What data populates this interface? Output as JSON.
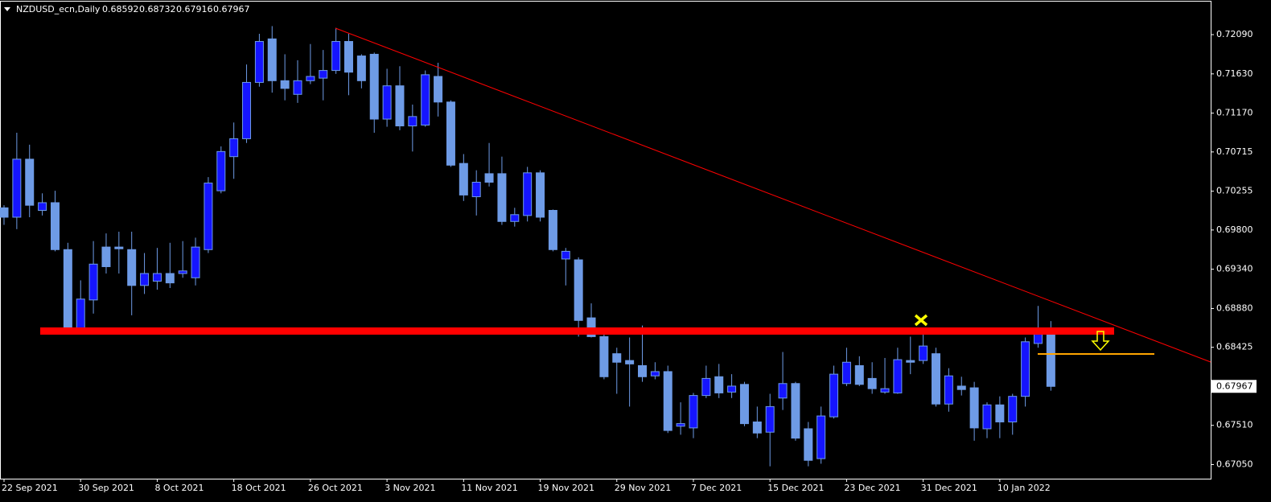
{
  "chart_data": {
    "type": "candlestick",
    "title": "NZDUSD_ecn,Daily",
    "categories": [
      "22 Sep 2021",
      null,
      null,
      null,
      null,
      null,
      "30 Sep 2021",
      null,
      null,
      null,
      null,
      null,
      "8 Oct 2021",
      null,
      null,
      null,
      null,
      null,
      "18 Oct 2021",
      null,
      null,
      null,
      null,
      null,
      "26 Oct 2021",
      null,
      null,
      null,
      null,
      null,
      "3 Nov 2021",
      null,
      null,
      null,
      null,
      null,
      "11 Nov 2021",
      null,
      null,
      null,
      null,
      null,
      "19 Nov 2021",
      null,
      null,
      null,
      null,
      null,
      "29 Nov 2021",
      null,
      null,
      null,
      null,
      null,
      "7 Dec 2021",
      null,
      null,
      null,
      null,
      null,
      "15 Dec 2021",
      null,
      null,
      null,
      null,
      null,
      "23 Dec 2021",
      null,
      null,
      null,
      null,
      null,
      "31 Dec 2021",
      null,
      null,
      null,
      null,
      null,
      "10 Jan 2022",
      null,
      null,
      null,
      null
    ],
    "open": [
      0.7006,
      0.6995,
      0.7063,
      0.7003,
      0.7012,
      0.6957,
      0.6865,
      0.6898,
      0.696,
      0.696,
      0.6957,
      0.6915,
      0.692,
      0.6929,
      0.6929,
      0.6924,
      0.6957,
      0.7026,
      0.7066,
      0.7087,
      0.7153,
      0.7204,
      0.7155,
      0.7139,
      0.7155,
      0.7158,
      0.7167,
      0.7201,
      0.7184,
      0.7186,
      0.711,
      0.7149,
      0.7102,
      0.7103,
      0.716,
      0.713,
      0.7058,
      0.7019,
      0.7046,
      0.7046,
      0.699,
      0.6997,
      0.7047,
      0.7003,
      0.6946,
      0.6945,
      0.6877,
      0.6855,
      0.6835,
      0.6827,
      0.6821,
      0.6809,
      0.6814,
      0.675,
      0.6748,
      0.6786,
      0.6808,
      0.679,
      0.6799,
      0.6755,
      0.6743,
      0.6783,
      0.68,
      0.6747,
      0.6712,
      0.6761,
      0.68,
      0.6821,
      0.6806,
      0.679,
      0.6789,
      0.6827,
      0.6827,
      0.6835,
      0.6776,
      0.6797,
      0.6795,
      0.6747,
      0.6775,
      0.6755,
      0.6785,
      0.6847,
      0.68592
    ],
    "high": [
      0.7009,
      0.7094,
      0.708,
      0.7023,
      0.7026,
      0.6965,
      0.6921,
      0.6967,
      0.6976,
      0.6978,
      0.6978,
      0.6953,
      0.6959,
      0.6965,
      0.6967,
      0.6971,
      0.7042,
      0.7078,
      0.7106,
      0.7174,
      0.721,
      0.7219,
      0.7186,
      0.7179,
      0.7198,
      0.7191,
      0.7217,
      0.721,
      0.7186,
      0.7188,
      0.7169,
      0.7172,
      0.7127,
      0.7167,
      0.7176,
      0.7132,
      0.7069,
      0.705,
      0.7082,
      0.7066,
      0.7006,
      0.7054,
      0.705,
      0.7004,
      0.6959,
      0.6948,
      0.6894,
      0.6861,
      0.6842,
      0.6854,
      0.6868,
      0.6825,
      0.6821,
      0.6778,
      0.6789,
      0.6821,
      0.6823,
      0.6811,
      0.6802,
      0.6773,
      0.6788,
      0.6837,
      0.6802,
      0.6755,
      0.6773,
      0.6821,
      0.6842,
      0.6832,
      0.6825,
      0.683,
      0.6842,
      0.6855,
      0.686,
      0.6842,
      0.6818,
      0.6808,
      0.6802,
      0.6778,
      0.6785,
      0.6788,
      0.6854,
      0.6891,
      0.68732
    ],
    "low": [
      0.6986,
      0.6981,
      0.6995,
      0.6997,
      0.6955,
      0.6861,
      0.6863,
      0.6882,
      0.6929,
      0.6929,
      0.688,
      0.6905,
      0.691,
      0.6912,
      0.6924,
      0.6915,
      0.6953,
      0.7023,
      0.704,
      0.7082,
      0.7148,
      0.7141,
      0.7132,
      0.7129,
      0.7151,
      0.7132,
      0.7163,
      0.7138,
      0.7146,
      0.7094,
      0.7101,
      0.7097,
      0.7072,
      0.7101,
      0.7113,
      0.7054,
      0.7014,
      0.6997,
      0.7031,
      0.6986,
      0.6984,
      0.699,
      0.699,
      0.6955,
      0.6915,
      0.6855,
      0.6854,
      0.6805,
      0.6788,
      0.6773,
      0.6802,
      0.6805,
      0.6742,
      0.674,
      0.6736,
      0.6783,
      0.6783,
      0.6783,
      0.675,
      0.6736,
      0.6703,
      0.6769,
      0.6733,
      0.6703,
      0.6706,
      0.6759,
      0.6797,
      0.6797,
      0.6788,
      0.6788,
      0.6788,
      0.6811,
      0.6823,
      0.6773,
      0.6767,
      0.6786,
      0.6733,
      0.6736,
      0.6736,
      0.674,
      0.6773,
      0.6842,
      0.67916
    ],
    "close": [
      0.6995,
      0.7063,
      0.7009,
      0.7012,
      0.6957,
      0.6865,
      0.6899,
      0.694,
      0.6937,
      0.6958,
      0.6915,
      0.6929,
      0.6929,
      0.6918,
      0.6932,
      0.696,
      0.7035,
      0.7072,
      0.7087,
      0.7153,
      0.7201,
      0.7155,
      0.7146,
      0.7155,
      0.716,
      0.7167,
      0.7201,
      0.7165,
      0.7155,
      0.711,
      0.7149,
      0.7102,
      0.7113,
      0.7162,
      0.713,
      0.7056,
      0.7021,
      0.7036,
      0.7036,
      0.699,
      0.6998,
      0.7047,
      0.6995,
      0.6957,
      0.6955,
      0.6874,
      0.6855,
      0.6808,
      0.6825,
      0.6823,
      0.6808,
      0.6814,
      0.6745,
      0.6753,
      0.6786,
      0.6806,
      0.6789,
      0.6797,
      0.6753,
      0.6742,
      0.6773,
      0.68,
      0.6736,
      0.671,
      0.6762,
      0.6811,
      0.6825,
      0.6799,
      0.6794,
      0.6794,
      0.6828,
      0.6825,
      0.6844,
      0.6776,
      0.6809,
      0.6793,
      0.6748,
      0.6775,
      0.6755,
      0.6785,
      0.6849,
      0.6861,
      0.67967
    ],
    "up_color": "#1515ff",
    "down_color": "#6e9be6",
    "ylim": [
      0.66885,
      0.72496
    ],
    "yticks": [
      {
        "value": 0.7209,
        "label": "0.72090"
      },
      {
        "value": 0.7163,
        "label": "0.71630"
      },
      {
        "value": 0.7117,
        "label": "0.71170"
      },
      0.70715,
      0.70255,
      {
        "value": 0.698,
        "label": "0.69800"
      },
      {
        "value": 0.6934,
        "label": "0.69340"
      },
      {
        "value": 0.6888,
        "label": "0.68880"
      },
      0.68425,
      {
        "value": 0.6751,
        "label": "0.67510"
      },
      {
        "value": 0.6705,
        "label": "0.67050"
      }
    ]
  }
}
